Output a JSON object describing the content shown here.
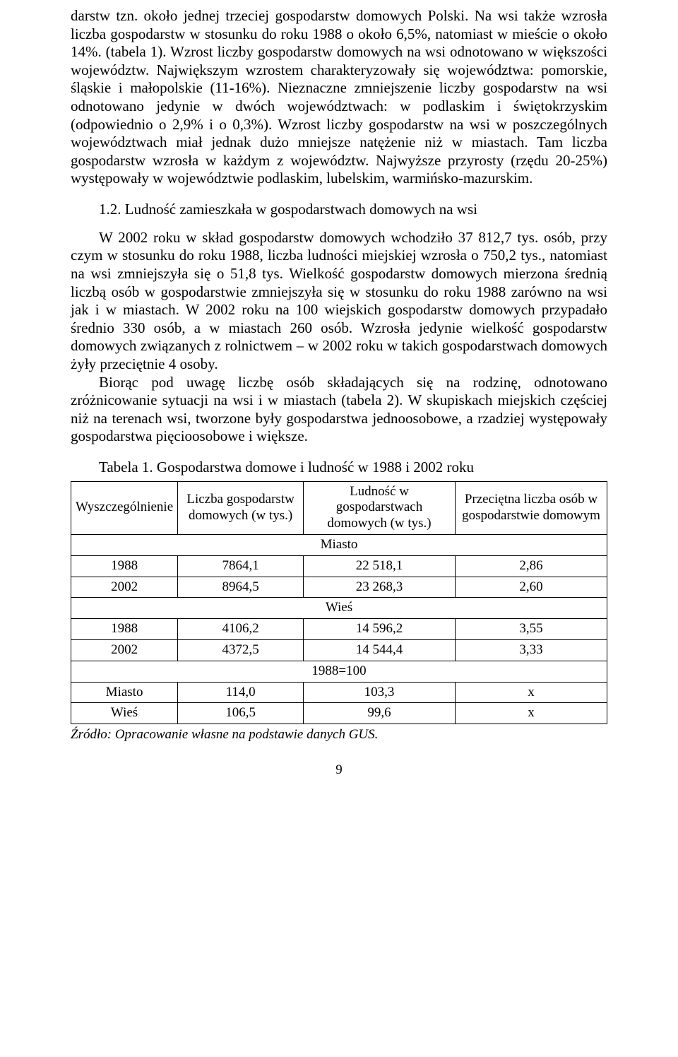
{
  "p1": "darstw tzn. około jednej trzeciej gospodarstw domowych Polski. Na wsi także wzrosła liczba gospodarstw w stosunku do roku 1988 o około 6,5%, natomiast w mieście o około 14%. (tabela 1). Wzrost liczby gospodarstw domowych na wsi odnotowano w większości województw. Największym wzrostem charakteryzowały się województwa: pomorskie, śląskie i małopolskie (11-16%). Nieznaczne zmniejszenie liczby gospodarstw na wsi odnotowano jedynie w dwóch województwach: w podlaskim i świętokrzyskim (odpowiednio o 2,9% i o 0,3%). Wzrost liczby gospodarstw na wsi w poszczególnych województwach miał jednak dużo mniejsze natężenie niż w miastach. Tam liczba gospodarstw wzrosła w każdym z województw. Najwyższe przyrosty (rzędu 20-25%) występowały w województwie podlaskim, lubelskim, warmińsko-mazurskim.",
  "h1": "1.2. Ludność zamieszkała w gospodarstwach domowych na wsi",
  "p2a": "W 2002 roku w skład gospodarstw domowych wchodziło 37 812,7 tys. osób, przy czym w stosunku do roku 1988, liczba ludności miejskiej wzrosła o 750,2 tys., natomiast na wsi zmniejszyła się o 51,8 tys. Wielkość gospodarstw domowych mierzona średnią liczbą osób w gospodarstwie zmniejszyła się w stosunku do roku 1988 zarówno na wsi jak i w miastach. W 2002 roku na 100 wiejskich gospodarstw domowych przypadało średnio 330 osób, a w miastach 260 osób. Wzrosła jedynie wielkość gospodarstw domowych związanych z rolnictwem – w 2002 roku w takich gospodarstwach domowych żyły przeciętnie 4 osoby.",
  "p2b": "Biorąc pod uwagę liczbę osób składających się na rodzinę, odnotowano zróżnicowanie sytuacji na wsi i w miastach (tabela 2). W skupiskach miejskich częściej niż na terenach wsi, tworzone były gospodarstwa jednoosobowe, a rzadziej występowały gospodarstwa pięcioosobowe i większe.",
  "table_caption": "Tabela 1. Gospodarstwa domowe i ludność w 1988 i 2002 roku",
  "table": {
    "columns": [
      "Wyszczególnienie",
      "Liczba gospodarstw domowych (w tys.)",
      "Ludność w gospodarstwach domowych (w tys.)",
      "Przeciętna liczba osób w gospodarstwie domowym"
    ],
    "section1": "Miasto",
    "section2": "Wieś",
    "section3": "1988=100",
    "rows_miasto": [
      [
        "1988",
        "7864,1",
        "22 518,1",
        "2,86"
      ],
      [
        "2002",
        "8964,5",
        "23 268,3",
        "2,60"
      ]
    ],
    "rows_wies": [
      [
        "1988",
        "4106,2",
        "14 596,2",
        "3,55"
      ],
      [
        "2002",
        "4372,5",
        "14 544,4",
        "3,33"
      ]
    ],
    "rows_index": [
      [
        "Miasto",
        "114,0",
        "103,3",
        "x"
      ],
      [
        "Wieś",
        "106,5",
        "99,6",
        "x"
      ]
    ]
  },
  "source": "Źródło: Opracowanie własne na podstawie danych GUS.",
  "pagenum": "9"
}
